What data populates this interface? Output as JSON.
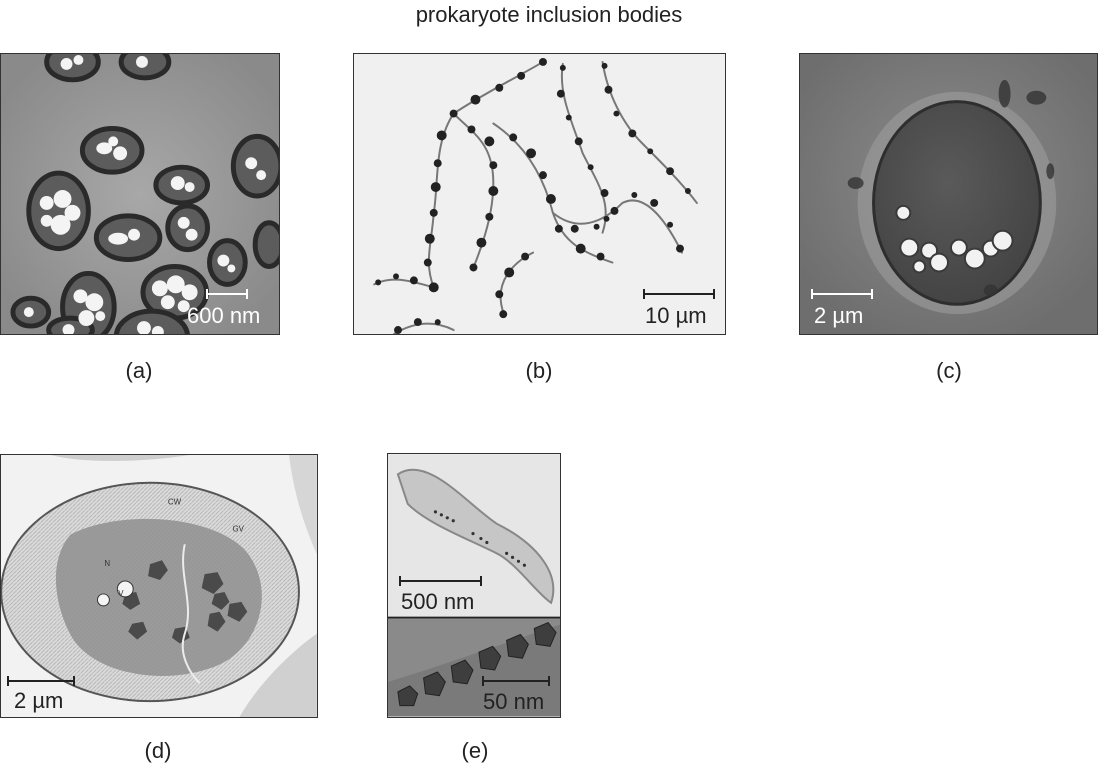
{
  "title": "prokaryote inclusion bodies",
  "panels": {
    "a": {
      "caption": "(a)",
      "scale_label": "600 nm"
    },
    "b": {
      "caption": "(b)",
      "scale_label": "10 µm"
    },
    "c": {
      "caption": "(c)",
      "scale_label": "2 µm"
    },
    "d": {
      "caption": "(d)",
      "scale_label": "2 µm",
      "micrograph_labels": [
        "CW",
        "GV",
        "N",
        "V"
      ]
    },
    "e": {
      "caption": "(e)",
      "scale_label_top": "500 nm",
      "scale_label_bottom": "50 nm"
    }
  }
}
